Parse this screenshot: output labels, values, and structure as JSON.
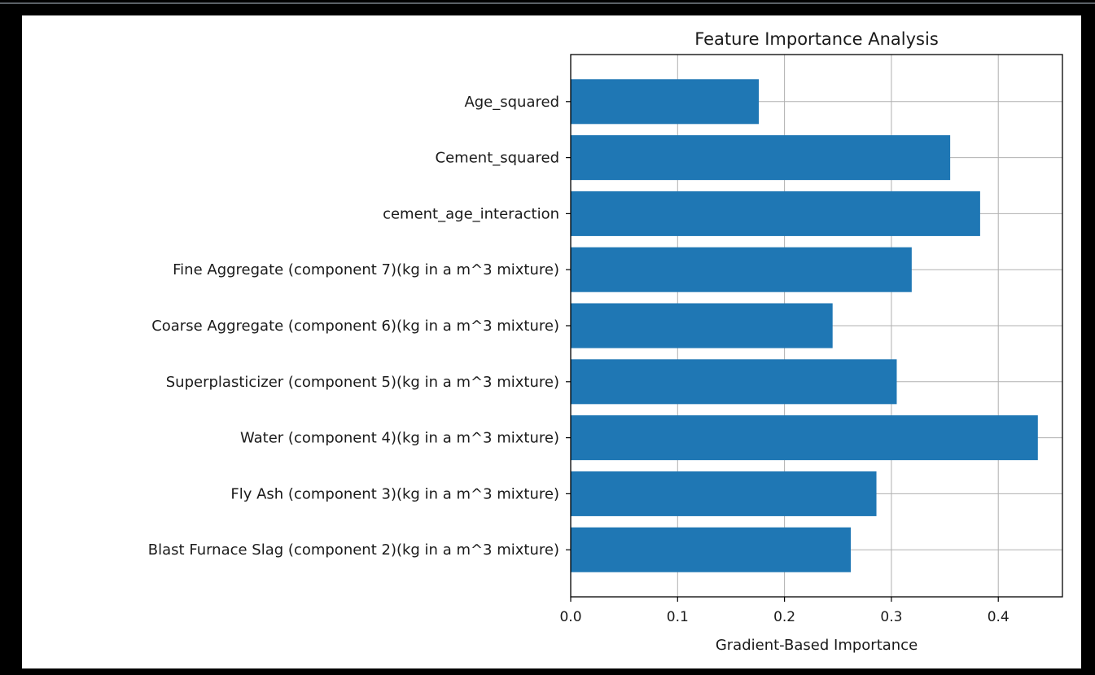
{
  "chart_data": {
    "type": "bar",
    "orientation": "horizontal",
    "title": "Feature Importance Analysis",
    "xlabel": "Gradient-Based Importance",
    "ylabel": "",
    "categories": [
      "Blast Furnace Slag (component 2)(kg in a m^3 mixture)",
      "Fly Ash (component 3)(kg in a m^3 mixture)",
      "Water  (component 4)(kg in a m^3 mixture)",
      "Superplasticizer (component 5)(kg in a m^3 mixture)",
      "Coarse Aggregate  (component 6)(kg in a m^3 mixture)",
      "Fine Aggregate (component 7)(kg in a m^3 mixture)",
      "cement_age_interaction",
      "Cement_squared",
      "Age_squared"
    ],
    "values": [
      0.262,
      0.286,
      0.437,
      0.305,
      0.245,
      0.319,
      0.383,
      0.355,
      0.176
    ],
    "xlim": [
      0,
      0.46
    ],
    "xticks": [
      0.0,
      0.1,
      0.2,
      0.3,
      0.4
    ],
    "xtick_labels": [
      "0.0",
      "0.1",
      "0.2",
      "0.3",
      "0.4"
    ],
    "grid": true,
    "bar_color": "#1f77b4",
    "grid_color": "#b0b0b0"
  }
}
